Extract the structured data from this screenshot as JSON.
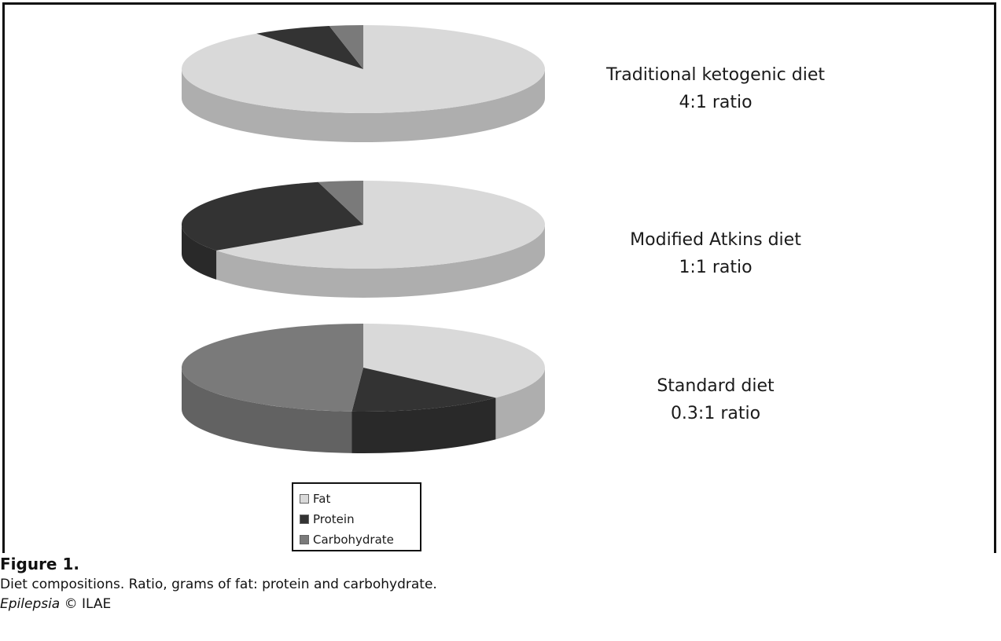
{
  "chart_data": {
    "type": "pie",
    "legend": {
      "placement": "bottom",
      "entries": [
        {
          "name": "Fat",
          "color": "#d9d9d9"
        },
        {
          "name": "Protein",
          "color": "#333333"
        },
        {
          "name": "Carbohydrate",
          "color": "#7a7a7a"
        }
      ]
    },
    "pies": [
      {
        "label_line1": "Traditional ketogenic diet",
        "label_line2": "4:1 ratio",
        "categories": [
          "Fat",
          "Protein",
          "Carbohydrate"
        ],
        "values": [
          90,
          7,
          3
        ],
        "colors": [
          "#d9d9d9",
          "#333333",
          "#7a7a7a"
        ]
      },
      {
        "label_line1": "Modified Atkins diet",
        "label_line2": "1:1 ratio",
        "categories": [
          "Fat",
          "Protein",
          "Carbohydrate"
        ],
        "values": [
          65,
          31,
          4
        ],
        "colors": [
          "#d9d9d9",
          "#333333",
          "#7a7a7a"
        ]
      },
      {
        "label_line1": "Standard diet",
        "label_line2": "0.3:1 ratio",
        "categories": [
          "Fat",
          "Protein",
          "Carbohydrate"
        ],
        "values": [
          37,
          14,
          49
        ],
        "colors": [
          "#d9d9d9",
          "#333333",
          "#7a7a7a"
        ]
      }
    ]
  },
  "caption": {
    "figure_label": "Figure 1.",
    "text": "Diet compositions. Ratio, grams of fat: protein and carbohydrate.",
    "journal": "Epilepsia",
    "copyright": "© ILAE"
  }
}
